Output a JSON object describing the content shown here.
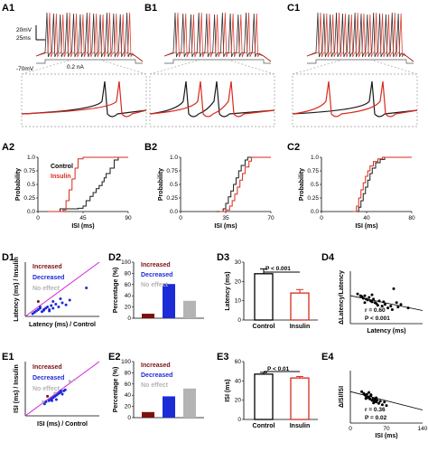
{
  "panels": {
    "A1": "A1",
    "B1": "B1",
    "C1": "C1",
    "A2": "A2",
    "B2": "B2",
    "C2": "C2",
    "D1": "D1",
    "D2": "D2",
    "D3": "D3",
    "D4": "D4",
    "E1": "E1",
    "E2": "E2",
    "E3": "E3",
    "E4": "E4"
  },
  "scalebar": {
    "mv": "20mV",
    "ms": "25ms",
    "vrest": "-70mV",
    "current": "0.2 nA"
  },
  "colors": {
    "control": "#1a1a1a",
    "insulin": "#d9291c",
    "increased": "#7a1010",
    "decreased": "#1d2bd6",
    "noeffect": "#b4b4b4",
    "identity": "#d61ed6"
  },
  "legend": {
    "control": "Control",
    "insulin": "Insulin"
  },
  "groups": {
    "increased": "Increased",
    "decreased": "Decreased",
    "noeffect": "No effect"
  },
  "axes": {
    "probability": "Probability",
    "isi_ms": "ISI (ms)",
    "latency_insulin": "Latency (ms) / Insulin",
    "latency_control": "Latency (ms) / Control",
    "isi_insulin": "ISI (ms) / Insulin",
    "isi_control": "ISI (ms) / Control",
    "percentage": "Percentage (%)",
    "latency_ms": "Latency (ms)",
    "dlat": "ΔLatency/Latency",
    "disi": "ΔISI/ISI",
    "latency_x": "Latency (ms)",
    "isi_x": "ISI (ms)"
  },
  "stats": {
    "D3": "P < 0.001",
    "E3": "P < 0.01",
    "D4_r": "r = 0.60",
    "D4_p": "P < 0.001",
    "E4_r": "r = 0.36",
    "E4_p": "P = 0.02"
  },
  "chart_data": [
    {
      "id": "A2",
      "type": "line",
      "xlabel": "ISI (ms)",
      "ylabel": "Probability",
      "xticks": [
        0,
        45,
        90
      ],
      "yticks": [
        0.0,
        0.25,
        0.5,
        0.75,
        1.0
      ],
      "xlim": [
        0,
        90
      ],
      "ylim": [
        0,
        1
      ],
      "series": [
        {
          "name": "Control",
          "x": [
            10,
            22,
            40,
            45,
            48,
            52,
            55,
            58,
            61,
            64,
            66,
            68,
            72,
            76,
            80,
            90
          ],
          "y": [
            0,
            0.05,
            0.06,
            0.1,
            0.2,
            0.28,
            0.35,
            0.42,
            0.48,
            0.55,
            0.62,
            0.7,
            0.8,
            0.95,
            1.0,
            1.0
          ]
        },
        {
          "name": "Insulin",
          "x": [
            10,
            25,
            28,
            31,
            34,
            37,
            40,
            45,
            90
          ],
          "y": [
            0,
            0.03,
            0.2,
            0.4,
            0.6,
            0.8,
            0.97,
            1.0,
            1.0
          ]
        }
      ]
    },
    {
      "id": "B2",
      "type": "line",
      "xlabel": "ISI (ms)",
      "ylabel": "Probability",
      "xticks": [
        0,
        35,
        70
      ],
      "yticks": [
        0.0,
        0.25,
        0.5,
        0.75,
        1.0
      ],
      "xlim": [
        0,
        70
      ],
      "ylim": [
        0,
        1
      ],
      "series": [
        {
          "name": "Control",
          "x": [
            28,
            33,
            35,
            37,
            39,
            41,
            43,
            45,
            47,
            50,
            52,
            70
          ],
          "y": [
            0,
            0.05,
            0.15,
            0.27,
            0.38,
            0.5,
            0.62,
            0.75,
            0.85,
            0.95,
            1.0,
            1.0
          ]
        },
        {
          "name": "Insulin",
          "x": [
            30,
            35,
            38,
            40,
            42,
            44,
            46,
            48,
            50,
            53,
            55,
            70
          ],
          "y": [
            0,
            0.03,
            0.1,
            0.2,
            0.32,
            0.45,
            0.58,
            0.7,
            0.82,
            0.93,
            1.0,
            1.0
          ]
        }
      ]
    },
    {
      "id": "C2",
      "type": "line",
      "xlabel": "ISI (ms)",
      "ylabel": "Probability",
      "xticks": [
        0,
        40,
        80
      ],
      "yticks": [
        0.0,
        0.25,
        0.5,
        0.75,
        1.0
      ],
      "xlim": [
        0,
        80
      ],
      "ylim": [
        0,
        1
      ],
      "series": [
        {
          "name": "Control",
          "x": [
            30,
            33,
            35,
            37,
            39,
            41,
            43,
            45,
            48,
            52,
            56,
            80
          ],
          "y": [
            0,
            0.08,
            0.2,
            0.33,
            0.45,
            0.58,
            0.7,
            0.8,
            0.9,
            0.96,
            1.0,
            1.0
          ]
        },
        {
          "name": "Insulin",
          "x": [
            28,
            31,
            33,
            35,
            37,
            39,
            41,
            43,
            46,
            50,
            54,
            80
          ],
          "y": [
            0,
            0.1,
            0.25,
            0.4,
            0.53,
            0.65,
            0.75,
            0.84,
            0.92,
            0.97,
            1.0,
            1.0
          ]
        }
      ]
    },
    {
      "id": "D1",
      "type": "scatter",
      "xlabel": "Latency (ms) / Control",
      "ylabel": "Latency (ms) / Insulin",
      "xlim": [
        0,
        80
      ],
      "ylim": [
        0,
        80
      ],
      "series": [
        {
          "name": "Increased",
          "x": [
            14
          ],
          "y": [
            22
          ]
        },
        {
          "name": "Decreased",
          "x": [
            8,
            10,
            12,
            14,
            16,
            18,
            20,
            22,
            24,
            26,
            28,
            30,
            33,
            36,
            40,
            44,
            48,
            16,
            20,
            26,
            30,
            38,
            66
          ],
          "y": [
            4,
            6,
            8,
            10,
            12,
            7,
            9,
            12,
            14,
            10,
            16,
            12,
            18,
            14,
            20,
            17,
            24,
            14,
            10,
            8,
            22,
            26,
            42
          ]
        }
      ]
    },
    {
      "id": "D2",
      "type": "bar",
      "ylabel": "Percentage (%)",
      "categories": [
        "Increased",
        "Decreased",
        "No effect"
      ],
      "values": [
        8,
        61,
        31
      ],
      "ylim": [
        0,
        100
      ],
      "yticks": [
        0,
        20,
        40,
        60,
        80,
        100
      ]
    },
    {
      "id": "D3",
      "type": "bar",
      "ylabel": "Latency (ms)",
      "categories": [
        "Control",
        "Insulin"
      ],
      "values": [
        24,
        14
      ],
      "errors": [
        2.5,
        1.8
      ],
      "ylim": [
        0,
        30
      ],
      "yticks": [
        0,
        10,
        20,
        30
      ]
    },
    {
      "id": "D4",
      "type": "scatter",
      "xlabel": "Latency (ms)",
      "ylabel": "ΔLatency/Latency",
      "xlim": [
        0,
        100
      ],
      "ylim": [
        -1.5,
        1.5
      ],
      "points": {
        "x": [
          10,
          14,
          16,
          18,
          20,
          22,
          24,
          26,
          28,
          30,
          32,
          34,
          36,
          40,
          44,
          48,
          52,
          56,
          60,
          64,
          70,
          80,
          20,
          30,
          38,
          46,
          58,
          66
        ],
        "y": [
          0.2,
          0.1,
          0.05,
          -0.05,
          0.1,
          -0.1,
          -0.15,
          0.0,
          -0.2,
          -0.25,
          -0.1,
          -0.3,
          -0.35,
          -0.2,
          -0.5,
          -0.4,
          -0.6,
          -0.5,
          0.5,
          -0.3,
          -0.4,
          -0.6,
          -0.3,
          0.15,
          -0.45,
          -0.25,
          -0.7,
          -0.55
        ]
      },
      "fit": {
        "x": [
          0,
          100
        ],
        "y": [
          0.1,
          -0.75
        ]
      }
    },
    {
      "id": "E1",
      "type": "scatter",
      "xlabel": "ISI (ms) / Control",
      "ylabel": "ISI (ms) / Insulin",
      "xlim": [
        0,
        100
      ],
      "ylim": [
        0,
        100
      ],
      "series": [
        {
          "name": "Increased",
          "x": [
            30
          ],
          "y": [
            36
          ]
        },
        {
          "name": "Decreased",
          "x": [
            26,
            28,
            32,
            34,
            36,
            38,
            40,
            42,
            44,
            46,
            48,
            50,
            52,
            54,
            42,
            36,
            48
          ],
          "y": [
            22,
            26,
            28,
            30,
            32,
            34,
            36,
            38,
            40,
            42,
            44,
            40,
            46,
            48,
            30,
            28,
            46
          ]
        },
        {
          "name": "No effect",
          "x": [
            24,
            40,
            60,
            66
          ],
          "y": [
            26,
            42,
            64,
            66
          ]
        }
      ]
    },
    {
      "id": "E2",
      "type": "bar",
      "ylabel": "Percentage (%)",
      "categories": [
        "Increased",
        "Decreased",
        "No effect"
      ],
      "values": [
        10,
        38,
        52
      ],
      "ylim": [
        0,
        100
      ],
      "yticks": [
        0,
        20,
        40,
        60,
        80,
        100
      ]
    },
    {
      "id": "E3",
      "type": "bar",
      "ylabel": "ISI (ms)",
      "categories": [
        "Control",
        "Insulin"
      ],
      "values": [
        47,
        43
      ],
      "errors": [
        1.8,
        1.6
      ],
      "ylim": [
        0,
        60
      ],
      "yticks": [
        0,
        20,
        40,
        60
      ]
    },
    {
      "id": "E4",
      "type": "scatter",
      "xlabel": "ISI (ms)",
      "ylabel": "ΔISI/ISI",
      "xlim": [
        0,
        140
      ],
      "ylim": [
        -0.6,
        0.6
      ],
      "xticks": [
        0,
        70,
        140
      ],
      "points": {
        "x": [
          22,
          26,
          28,
          30,
          32,
          34,
          36,
          38,
          40,
          42,
          44,
          46,
          48,
          50,
          52,
          55,
          58,
          62,
          66,
          70,
          30,
          40,
          50,
          45,
          36
        ],
        "y": [
          0.12,
          0.08,
          0.05,
          0.02,
          0.06,
          -0.02,
          0.0,
          -0.05,
          0.03,
          -0.08,
          -0.04,
          -0.1,
          -0.06,
          -0.12,
          -0.08,
          -0.15,
          -0.1,
          -0.18,
          -0.12,
          -0.2,
          -0.04,
          0.05,
          -0.02,
          -0.14,
          0.1
        ]
      },
      "fit": {
        "x": [
          0,
          140
        ],
        "y": [
          0.12,
          -0.3
        ]
      }
    }
  ]
}
